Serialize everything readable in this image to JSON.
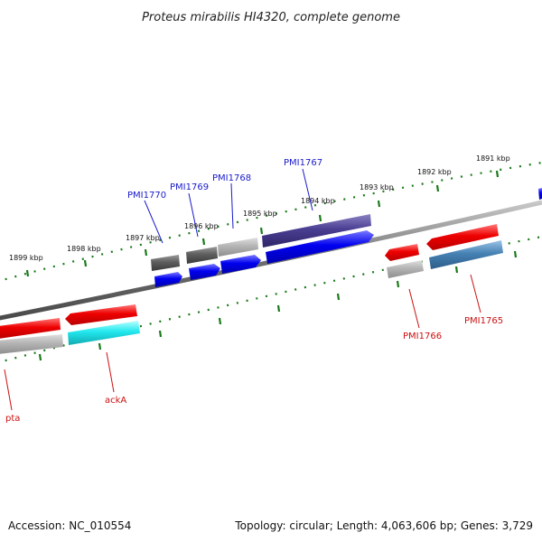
{
  "title": "Proteus mirabilis HI4320, complete genome",
  "footer": {
    "accession": "Accession: NC_010554",
    "summary": "Topology: circular; Length: 4,063,606 bp; Genes: 3,729"
  },
  "colors": {
    "backbone": "#7a7a7a",
    "ticks": "#1a7a1a",
    "top_label": "#1a1acc",
    "bottom_label": "#cc1111"
  },
  "scale_ticks": [
    {
      "label": "1899 kbp"
    },
    {
      "label": "1898 kbp"
    },
    {
      "label": "1897 kbp"
    },
    {
      "label": "1896 kbp"
    },
    {
      "label": "1895 kbp"
    },
    {
      "label": "1894 kbp"
    },
    {
      "label": "1893 kbp"
    },
    {
      "label": "1892 kbp"
    },
    {
      "label": "1891 kbp"
    }
  ],
  "top_gene_labels": [
    {
      "label": "PMI1770"
    },
    {
      "label": "PMI1769"
    },
    {
      "label": "PMI1768"
    },
    {
      "label": "PMI1767"
    }
  ],
  "bottom_gene_labels": [
    {
      "label": "pta"
    },
    {
      "label": "ackA"
    },
    {
      "label": "PMI1766"
    },
    {
      "label": "PMI1765"
    }
  ]
}
